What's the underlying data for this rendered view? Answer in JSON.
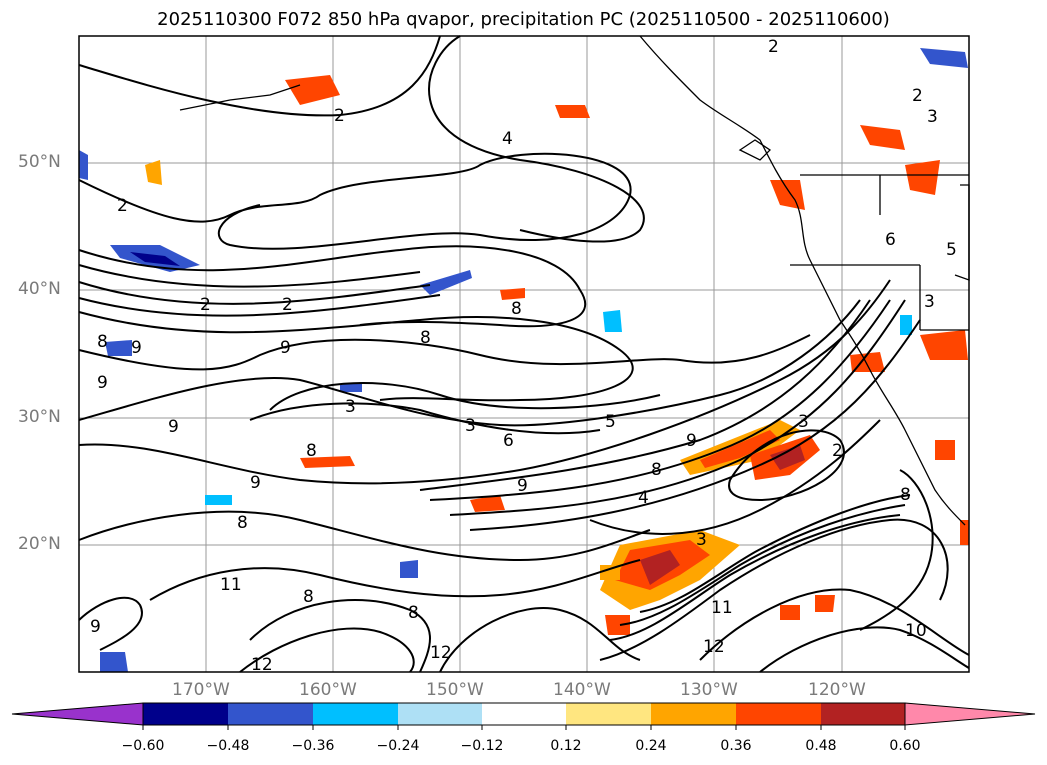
{
  "title": "2025110300 F072 850 hPa qvapor, precipitation PC (2025110500 - 2025110600)",
  "lat_labels": [
    "50°N",
    "40°N",
    "30°N",
    "20°N"
  ],
  "lon_labels": [
    "170°W",
    "160°W",
    "150°W",
    "140°W",
    "130°W",
    "120°W"
  ],
  "colorbar": {
    "ticks": [
      "−0.60",
      "−0.48",
      "−0.36",
      "−0.24",
      "−0.12",
      "0.12",
      "0.24",
      "0.36",
      "0.48",
      "0.60"
    ],
    "colors": [
      "#9932cc",
      "#00008b",
      "#3355cc",
      "#00bfff",
      "#aee0f5",
      "#ffffff",
      "#ffe680",
      "#ffa500",
      "#ff4500",
      "#b22222",
      "#ff88aa"
    ]
  },
  "contour_labels": [
    {
      "text": "2"
    },
    {
      "text": "4"
    },
    {
      "text": "2"
    },
    {
      "text": "2"
    },
    {
      "text": "2"
    },
    {
      "text": "8"
    },
    {
      "text": "9"
    },
    {
      "text": "8"
    },
    {
      "text": "9"
    },
    {
      "text": "3"
    },
    {
      "text": "9"
    },
    {
      "text": "8"
    },
    {
      "text": "9"
    },
    {
      "text": "3"
    },
    {
      "text": "6"
    },
    {
      "text": "5"
    },
    {
      "text": "9"
    },
    {
      "text": "8"
    },
    {
      "text": "9"
    },
    {
      "text": "4"
    },
    {
      "text": "2"
    },
    {
      "text": "3"
    },
    {
      "text": "8"
    },
    {
      "text": "8"
    },
    {
      "text": "11"
    },
    {
      "text": "8"
    },
    {
      "text": "8"
    },
    {
      "text": "12"
    },
    {
      "text": "12"
    },
    {
      "text": "12"
    },
    {
      "text": "11"
    },
    {
      "text": "10"
    },
    {
      "text": "9"
    },
    {
      "text": "3"
    },
    {
      "text": "2"
    },
    {
      "text": "6"
    },
    {
      "text": "5"
    },
    {
      "text": "3"
    },
    {
      "text": "3"
    },
    {
      "text": "9"
    },
    {
      "text": "2"
    },
    {
      "text": "8"
    }
  ]
}
